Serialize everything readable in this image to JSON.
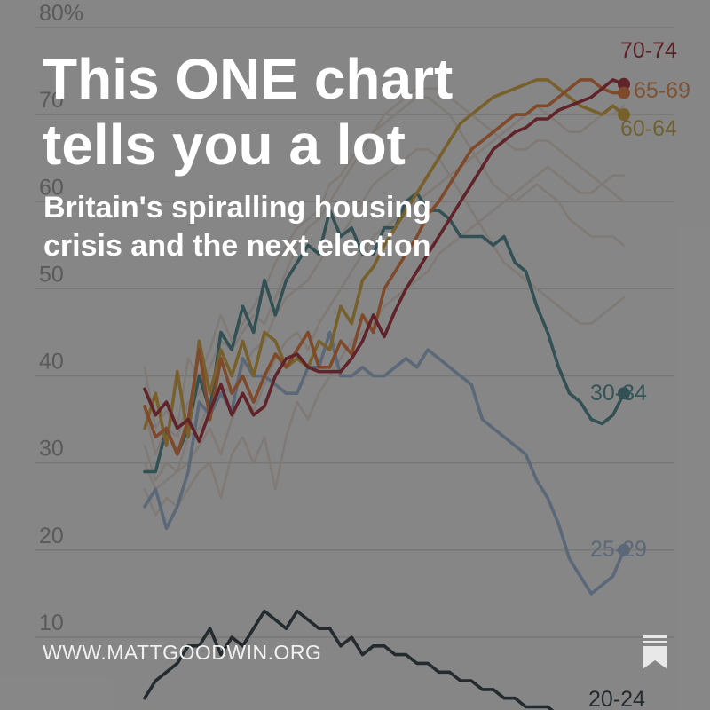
{
  "chart_data": {
    "type": "line",
    "y_unit": "%",
    "ylim": [
      0,
      80
    ],
    "y_ticks": [
      {
        "value": 80,
        "label": "80%"
      },
      {
        "value": 70,
        "label": "70"
      },
      {
        "value": 60,
        "label": "60"
      },
      {
        "value": 50,
        "label": "50"
      },
      {
        "value": 40,
        "label": "40"
      },
      {
        "value": 30,
        "label": "30"
      },
      {
        "value": 20,
        "label": "20"
      },
      {
        "value": 10,
        "label": "10"
      }
    ],
    "x_count": 45,
    "highlighted_series": [
      {
        "name": "70-74",
        "color": "#9a1b26",
        "label_color": "#8b1a24",
        "values": [
          38.5,
          35.5,
          37,
          34,
          35,
          32.5,
          36,
          39,
          35.5,
          38,
          35.5,
          36.5,
          40,
          42,
          42.5,
          41,
          40.5,
          40.5,
          40.5,
          42,
          44,
          47,
          44.5,
          47.5,
          50,
          52,
          54,
          56,
          58,
          60,
          62,
          64,
          66,
          67,
          68,
          68.5,
          69.5,
          69.5,
          70.5,
          71,
          71.5,
          72,
          73,
          74,
          73.5
        ]
      },
      {
        "name": "65-69",
        "color": "#d96a2b",
        "label_color": "#d97b3a",
        "values": [
          36.5,
          33,
          34,
          31,
          35,
          43,
          35,
          42,
          38,
          40,
          37,
          40,
          42.5,
          41,
          43,
          45,
          41,
          41,
          44,
          42.5,
          47,
          45,
          50,
          52,
          54,
          56,
          58.5,
          60,
          62,
          64,
          66,
          67,
          68,
          69,
          70,
          70,
          71,
          71,
          72,
          73,
          74,
          74,
          73,
          72.5,
          72.5
        ]
      },
      {
        "name": "60-64",
        "color": "#c89a2a",
        "label_color": "#b99c37",
        "values": [
          34,
          38,
          32,
          40.5,
          33,
          44,
          38,
          43,
          40,
          44,
          40,
          45,
          44,
          41,
          42,
          41,
          44,
          43,
          48,
          46,
          51,
          52.5,
          55,
          57,
          59,
          61,
          63,
          65,
          67,
          69,
          70,
          71,
          72,
          72.5,
          73,
          73.5,
          74,
          74,
          73,
          72,
          71,
          70.5,
          70,
          71,
          70
        ]
      },
      {
        "name": "30-34",
        "color": "#3b7a80",
        "label_color": "#3e8088",
        "values": [
          29,
          29,
          34,
          31,
          34,
          40,
          36,
          45,
          43,
          48,
          45,
          51,
          47,
          51,
          53,
          55,
          54,
          59,
          56,
          57,
          54,
          54,
          57,
          57,
          60,
          61,
          59,
          59,
          58,
          56,
          56,
          56,
          55,
          56,
          53,
          52,
          48,
          45,
          41,
          38,
          37,
          35,
          34.5,
          35.5,
          38
        ]
      },
      {
        "name": "25-29",
        "color": "#8fa9cb",
        "label_color": "#8fa9cb",
        "values": [
          25,
          27,
          22.5,
          25,
          29,
          37,
          35.5,
          38,
          36,
          42,
          40,
          40,
          39,
          38,
          38,
          41,
          41,
          45,
          40,
          40,
          41,
          40,
          40,
          41,
          42,
          41,
          43,
          42,
          41,
          40,
          39,
          35,
          34,
          33,
          32,
          31,
          28,
          26,
          23,
          19,
          17,
          15,
          16,
          17,
          20
        ]
      },
      {
        "name": "20-24",
        "color": "#1c2a30",
        "label_color": "#1c2a30",
        "values": [
          3,
          5,
          6,
          7,
          9,
          9,
          11,
          8,
          10,
          9,
          11,
          13,
          12,
          11,
          13,
          12,
          11,
          11,
          9,
          10,
          8,
          9,
          9,
          8,
          8,
          7,
          7,
          6,
          6,
          5,
          5,
          4,
          4,
          3,
          3,
          2,
          2,
          2,
          1,
          1,
          1,
          1,
          1,
          1,
          1
        ]
      }
    ],
    "background_series": [
      {
        "name": "background-1",
        "values": [
          41,
          34,
          36,
          34,
          42,
          40,
          43,
          47,
          44,
          46,
          48,
          50,
          53,
          55,
          57,
          58,
          59,
          62,
          63,
          65,
          67,
          68,
          70,
          71,
          72,
          73,
          73,
          73,
          72,
          71,
          70,
          69,
          68,
          67,
          66,
          66,
          67,
          67,
          66,
          65,
          64,
          63,
          62,
          61,
          60
        ]
      },
      {
        "name": "background-2",
        "values": [
          36,
          31,
          34,
          33,
          37,
          38,
          41,
          44,
          43,
          45,
          47,
          46,
          49,
          52,
          55,
          57,
          58,
          60,
          62,
          64,
          66,
          68,
          69,
          70,
          71,
          72,
          72,
          71,
          70,
          68,
          66,
          64,
          62,
          61,
          60,
          61,
          62,
          61,
          60,
          58,
          57,
          56,
          56,
          56,
          55
        ]
      },
      {
        "name": "background-3",
        "values": [
          32,
          28,
          30,
          29,
          33,
          34,
          37,
          39,
          38,
          41,
          43,
          44,
          47,
          49,
          50,
          51,
          53,
          55,
          56,
          58,
          60,
          62,
          63,
          64,
          65,
          66,
          66,
          65,
          63,
          61,
          59,
          57,
          55,
          53,
          52,
          51,
          50,
          49,
          48,
          47,
          46,
          46,
          47,
          48,
          49
        ]
      },
      {
        "name": "background-4",
        "values": [
          30,
          27,
          28,
          29,
          30,
          32,
          34,
          31,
          35,
          38,
          36,
          39,
          42,
          44,
          45,
          43,
          46,
          48,
          50,
          52,
          54,
          56,
          57,
          58,
          59,
          60,
          61,
          62,
          63,
          64,
          65,
          66,
          67,
          68,
          69,
          70,
          71,
          70,
          69,
          68,
          68,
          69,
          70,
          70,
          71
        ]
      },
      {
        "name": "background-5",
        "values": [
          27,
          24,
          26,
          25,
          27,
          29,
          30,
          26,
          31,
          33,
          30,
          33,
          27,
          33,
          37,
          35,
          38,
          40,
          42,
          44,
          45,
          46,
          48,
          49,
          50,
          51,
          52,
          54,
          55,
          56,
          57,
          58,
          59,
          60,
          61,
          62,
          63,
          64,
          63,
          62,
          61,
          61,
          62,
          63,
          63
        ]
      }
    ],
    "background_color": "#d9cfc4"
  },
  "overlay": {
    "headline": "This ONE chart\ntells you a lot",
    "subhead": "Britain's spiralling housing\ncrisis and the next election",
    "site_url": "WWW.MATTGOODWIN.ORG",
    "bookmark_icon": "bookmark-icon"
  }
}
